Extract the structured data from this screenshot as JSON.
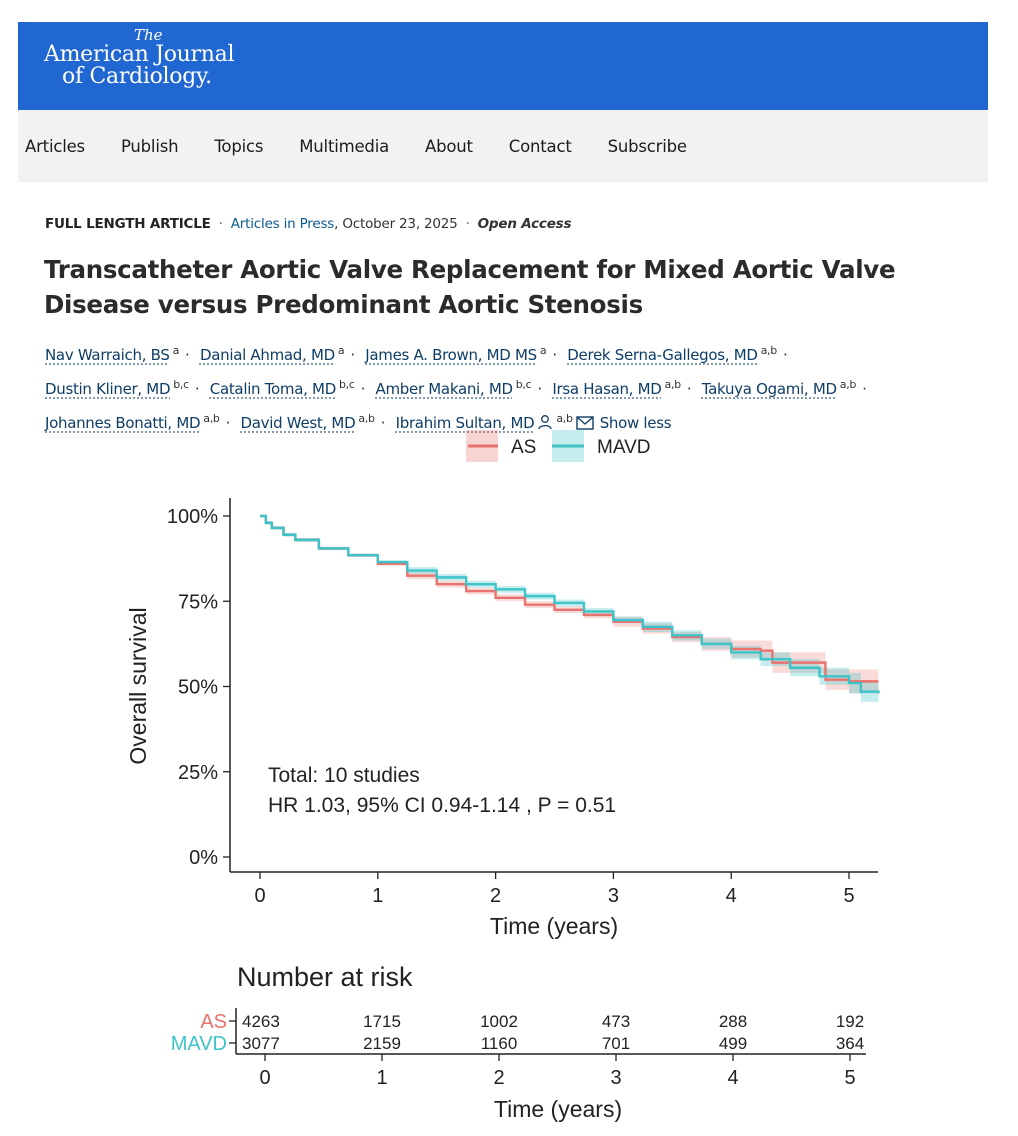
{
  "journal": {
    "the": "The",
    "name_line1": "American Journal",
    "name_line2": "of Cardiology."
  },
  "nav": {
    "items": [
      "Articles",
      "Publish",
      "Topics",
      "Multimedia",
      "About",
      "Contact",
      "Subscribe"
    ]
  },
  "article": {
    "type": "FULL LENGTH ARTICLE",
    "status_link": "Articles in Press",
    "date": ", October 23, 2025",
    "access": "Open Access",
    "title": "Transcatheter Aortic Valve Replacement for Mixed Aortic Valve Disease versus Predominant Aortic Stenosis",
    "authors": [
      {
        "name": "Nav Warraich, BS",
        "aff": "a"
      },
      {
        "name": "Danial Ahmad, MD",
        "aff": "a"
      },
      {
        "name": "James A. Brown, MD MS",
        "aff": "a"
      },
      {
        "name": "Derek Serna-Gallegos, MD",
        "aff": "a,b"
      },
      {
        "name": "Dustin Kliner, MD",
        "aff": "b,c"
      },
      {
        "name": "Catalin Toma, MD",
        "aff": "b,c"
      },
      {
        "name": "Amber Makani, MD",
        "aff": "b,c"
      },
      {
        "name": "Irsa Hasan, MD",
        "aff": "a,b"
      },
      {
        "name": "Takuya Ogami, MD",
        "aff": "a,b"
      },
      {
        "name": "Johannes Bonatti, MD",
        "aff": "a,b"
      },
      {
        "name": "David West, MD",
        "aff": "a,b"
      },
      {
        "name": "Ibrahim Sultan, MD",
        "aff": "a,b"
      }
    ],
    "show_less": "Show less"
  },
  "colors": {
    "header": "#2167d1",
    "as": "#e8726d",
    "mavd": "#3ec3c8"
  },
  "chart_data": {
    "type": "line",
    "title": "",
    "xlabel": "Time (years)",
    "ylabel": "Overall survival",
    "xlim": [
      -0.2,
      5.25
    ],
    "ylim": [
      0,
      100
    ],
    "x_ticks": [
      0,
      1,
      2,
      3,
      4,
      5
    ],
    "y_ticks": [
      0,
      25,
      50,
      75,
      100
    ],
    "y_tick_labels": [
      "0%",
      "25%",
      "50%",
      "75%",
      "100%"
    ],
    "legend": [
      "AS",
      "MAVD"
    ],
    "annotation_lines": [
      "Total: 10 studies",
      "HR 1.03, 95% CI 0.94-1.14 , P = 0.51"
    ],
    "series": [
      {
        "name": "AS",
        "x": [
          0,
          0.05,
          0.1,
          0.2,
          0.3,
          0.5,
          0.75,
          1.0,
          1.25,
          1.5,
          1.75,
          2.0,
          2.25,
          2.5,
          2.75,
          3.0,
          3.25,
          3.5,
          3.75,
          4.0,
          4.25,
          4.35,
          4.5,
          4.65,
          4.75,
          4.8,
          5.0,
          5.25
        ],
        "y": [
          100,
          98,
          96.5,
          94.5,
          93,
          90.5,
          88.5,
          86,
          82.5,
          80,
          78,
          76,
          74,
          72.5,
          71,
          69,
          67,
          64.5,
          62.5,
          61,
          60.5,
          57,
          57,
          57,
          57,
          52,
          51.5,
          51.5
        ],
        "ci_low": [
          100,
          97.5,
          96,
          94,
          92.5,
          90,
          88,
          85.5,
          81.5,
          79,
          77,
          75,
          73,
          71.5,
          70,
          67.5,
          65.5,
          63,
          60.5,
          58.5,
          57.5,
          54,
          54,
          54,
          54,
          49,
          48,
          48
        ],
        "ci_high": [
          100,
          98.5,
          97,
          95,
          93.5,
          91,
          89,
          86.5,
          83.5,
          81,
          79,
          77,
          75,
          73.5,
          72,
          70.5,
          68.5,
          66,
          64.5,
          63.5,
          63.5,
          60,
          60,
          60,
          60,
          55,
          55,
          55
        ]
      },
      {
        "name": "MAVD",
        "x": [
          0,
          0.05,
          0.1,
          0.2,
          0.3,
          0.5,
          0.75,
          1.0,
          1.25,
          1.5,
          1.75,
          2.0,
          2.25,
          2.5,
          2.75,
          3.0,
          3.25,
          3.5,
          3.75,
          4.0,
          4.25,
          4.5,
          4.75,
          5.0,
          5.1,
          5.25
        ],
        "y": [
          100,
          98,
          96.5,
          94.5,
          93,
          90.5,
          88.5,
          86.5,
          84,
          82,
          80,
          78.5,
          76.5,
          74.5,
          72,
          69.5,
          67.5,
          65,
          62.5,
          60,
          58,
          55.5,
          53,
          51,
          48.5,
          48
        ],
        "ci_low": [
          100,
          97.5,
          96,
          94,
          92.5,
          90,
          88,
          86,
          83,
          81,
          79,
          77.5,
          75.5,
          73.5,
          71,
          68.5,
          66,
          63.5,
          61,
          58,
          56,
          53,
          50.5,
          48,
          45.5,
          45
        ],
        "ci_high": [
          100,
          98.5,
          97,
          95,
          93.5,
          91,
          89,
          87,
          85,
          83,
          81,
          79.5,
          77.5,
          75.5,
          73,
          70.5,
          69,
          66.5,
          64,
          62,
          60,
          58,
          55.5,
          54,
          51.5,
          51
        ]
      }
    ],
    "risk_table": {
      "title": "Number at risk",
      "times": [
        0,
        1,
        2,
        3,
        4,
        5
      ],
      "rows": [
        {
          "name": "AS",
          "values": [
            "4263",
            "1715",
            "1002",
            "473",
            "288",
            "192"
          ]
        },
        {
          "name": "MAVD",
          "values": [
            "3077",
            "2159",
            "1160",
            "701",
            "499",
            "364"
          ]
        }
      ],
      "xlabel": "Time (years)"
    }
  }
}
